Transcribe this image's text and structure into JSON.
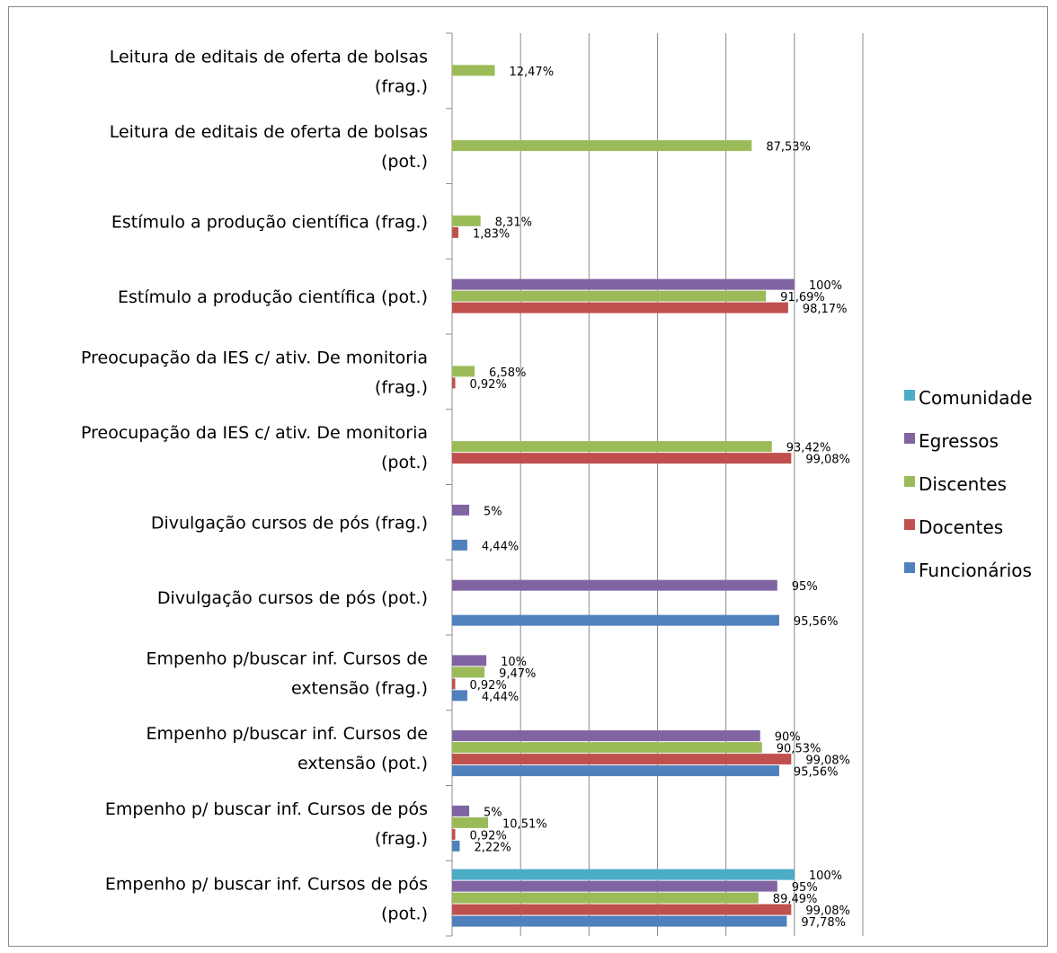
{
  "chart_data": {
    "type": "bar",
    "orientation": "horizontal",
    "title": "",
    "xlabel": "",
    "ylabel": "",
    "xlim": [
      0,
      120
    ],
    "grid": true,
    "legend_position": "right",
    "series": [
      {
        "name": "Comunidade",
        "color": "#4BACC6"
      },
      {
        "name": "Egressos",
        "color": "#8064A2"
      },
      {
        "name": "Discentes",
        "color": "#9BBB59"
      },
      {
        "name": "Docentes",
        "color": "#C0504D"
      },
      {
        "name": "Funcionários",
        "color": "#4F81BD"
      }
    ],
    "categories": [
      {
        "label": [
          "Leitura de editais de oferta de bolsas",
          "(frag.)"
        ],
        "values": {
          "Discentes": 12.47
        },
        "labels": {
          "Discentes": "12,47%"
        }
      },
      {
        "label": [
          "Leitura de editais de oferta de bolsas",
          "(pot.)"
        ],
        "values": {
          "Discentes": 87.53
        },
        "labels": {
          "Discentes": "87,53%"
        }
      },
      {
        "label": [
          "Estímulo a produção científica (frag.)"
        ],
        "values": {
          "Discentes": 8.31,
          "Docentes": 1.83
        },
        "labels": {
          "Discentes": "8,31%",
          "Docentes": "1,83%"
        }
      },
      {
        "label": [
          "Estímulo a produção científica (pot.)"
        ],
        "values": {
          "Egressos": 100,
          "Discentes": 91.69,
          "Docentes": 98.17
        },
        "labels": {
          "Egressos": "100%",
          "Discentes": "91,69%",
          "Docentes": "98,17%"
        }
      },
      {
        "label": [
          "Preocupação da IES c/ ativ. De monitoria",
          "(frag.)"
        ],
        "values": {
          "Discentes": 6.58,
          "Docentes": 0.92
        },
        "labels": {
          "Discentes": "6,58%",
          "Docentes": "0,92%"
        }
      },
      {
        "label": [
          "Preocupação da IES c/ ativ. De monitoria",
          "(pot.)"
        ],
        "values": {
          "Discentes": 93.42,
          "Docentes": 99.08
        },
        "labels": {
          "Discentes": "93,42%",
          "Docentes": "99,08%"
        }
      },
      {
        "label": [
          "Divulgação cursos de pós (frag.)"
        ],
        "values": {
          "Egressos": 5,
          "Funcionários": 4.44
        },
        "labels": {
          "Egressos": "5%",
          "Funcionários": "4,44%"
        }
      },
      {
        "label": [
          "Divulgação cursos de pós (pot.)"
        ],
        "values": {
          "Egressos": 95,
          "Funcionários": 95.56
        },
        "labels": {
          "Egressos": "95%",
          "Funcionários": "95,56%"
        }
      },
      {
        "label": [
          "Empenho p/buscar inf. Cursos de",
          "extensão (frag.)"
        ],
        "values": {
          "Egressos": 10,
          "Discentes": 9.47,
          "Docentes": 0.92,
          "Funcionários": 4.44
        },
        "labels": {
          "Egressos": "10%",
          "Discentes": "9,47%",
          "Docentes": "0,92%",
          "Funcionários": "4,44%"
        }
      },
      {
        "label": [
          "Empenho p/buscar inf. Cursos de",
          "extensão (pot.)"
        ],
        "values": {
          "Egressos": 90,
          "Discentes": 90.53,
          "Docentes": 99.08,
          "Funcionários": 95.56
        },
        "labels": {
          "Egressos": "90%",
          "Discentes": "90,53%",
          "Docentes": "99,08%",
          "Funcionários": "95,56%"
        }
      },
      {
        "label": [
          "Empenho  p/ buscar inf. Cursos de pós",
          "(frag.)"
        ],
        "values": {
          "Egressos": 5,
          "Discentes": 10.51,
          "Docentes": 0.92,
          "Funcionários": 2.22
        },
        "labels": {
          "Egressos": "5%",
          "Discentes": "10,51%",
          "Docentes": "0,92%",
          "Funcionários": "2,22%"
        }
      },
      {
        "label": [
          "Empenho  p/ buscar inf. Cursos de pós",
          "(pot.)"
        ],
        "values": {
          "Comunidade": 100,
          "Egressos": 95,
          "Discentes": 89.49,
          "Docentes": 99.08,
          "Funcionários": 97.78
        },
        "labels": {
          "Comunidade": "100%",
          "Egressos": "95%",
          "Discentes": "89,49%",
          "Docentes": "99,08%",
          "Funcionários": "97,78%"
        }
      }
    ]
  }
}
